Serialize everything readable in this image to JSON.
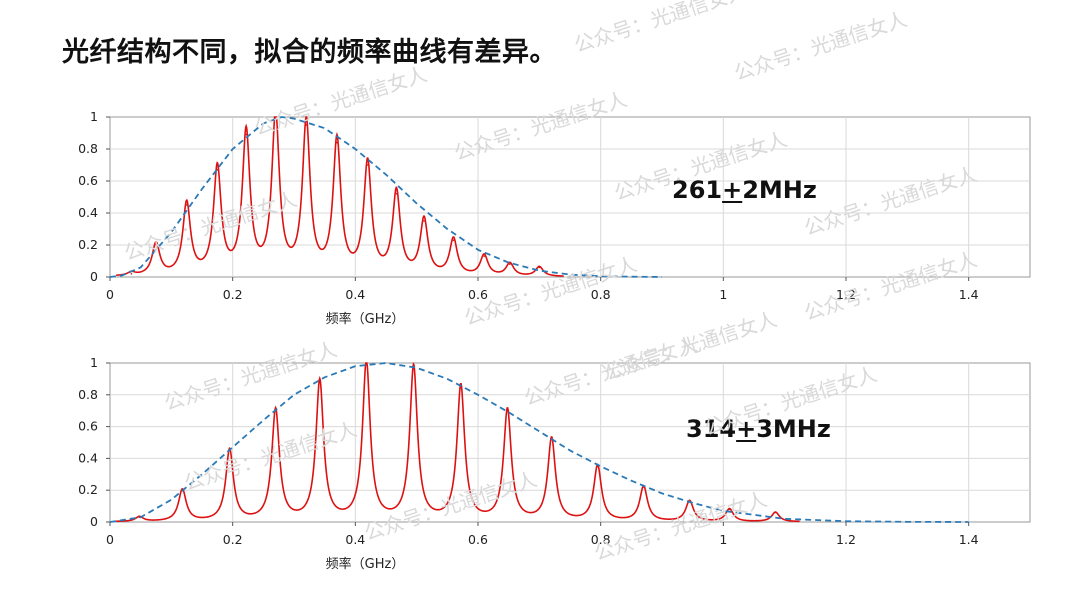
{
  "title": "光纤结构不同，拟合的频率曲线有差异。",
  "watermark_text": "公众号：光通信女人",
  "colors": {
    "peaks": "#dd1111",
    "envelope": "#2a7ab8",
    "grid": "#d9d9d9",
    "axis": "#555555"
  },
  "chart_data": [
    {
      "type": "line",
      "xlabel": "频率（GHz）",
      "ylabel": "",
      "xlim": [
        0,
        1.5
      ],
      "ylim": [
        0,
        1
      ],
      "xticks": [
        "0",
        "0.2",
        "0.4",
        "0.6",
        "0.8",
        "1",
        "1.2",
        "1.4"
      ],
      "yticks": [
        "0",
        "0.2",
        "0.4",
        "0.6",
        "0.8",
        "1"
      ],
      "grid": true,
      "annotation": {
        "value": "261",
        "pm": "+",
        "rest": "2MHz"
      },
      "series": [
        {
          "style": "solid-red",
          "peaks": [
            {
              "x": 0.035,
              "y": 0.02
            },
            {
              "x": 0.075,
              "y": 0.2
            },
            {
              "x": 0.125,
              "y": 0.45
            },
            {
              "x": 0.175,
              "y": 0.67
            },
            {
              "x": 0.222,
              "y": 0.89
            },
            {
              "x": 0.27,
              "y": 0.99
            },
            {
              "x": 0.32,
              "y": 0.95
            },
            {
              "x": 0.37,
              "y": 0.84
            },
            {
              "x": 0.42,
              "y": 0.7
            },
            {
              "x": 0.467,
              "y": 0.52
            },
            {
              "x": 0.512,
              "y": 0.35
            },
            {
              "x": 0.56,
              "y": 0.23
            },
            {
              "x": 0.61,
              "y": 0.13
            },
            {
              "x": 0.652,
              "y": 0.08
            },
            {
              "x": 0.7,
              "y": 0.06
            }
          ]
        },
        {
          "style": "dashed-blue",
          "x": [
            0.0,
            0.02,
            0.05,
            0.1,
            0.15,
            0.2,
            0.25,
            0.28,
            0.3,
            0.35,
            0.4,
            0.45,
            0.5,
            0.55,
            0.6,
            0.65,
            0.7,
            0.75,
            0.8,
            0.85,
            0.9
          ],
          "y": [
            0.0,
            0.01,
            0.06,
            0.28,
            0.55,
            0.8,
            0.96,
            1.0,
            0.99,
            0.93,
            0.8,
            0.64,
            0.46,
            0.3,
            0.17,
            0.09,
            0.04,
            0.015,
            0.005,
            0.002,
            0.0
          ]
        }
      ]
    },
    {
      "type": "line",
      "xlabel": "频率（GHz）",
      "ylabel": "",
      "xlim": [
        0,
        1.5
      ],
      "ylim": [
        0,
        1
      ],
      "xticks": [
        "0",
        "0.2",
        "0.4",
        "0.6",
        "0.8",
        "1",
        "1.2",
        "1.4"
      ],
      "yticks": [
        "0",
        "0.2",
        "0.4",
        "0.6",
        "0.8",
        "1"
      ],
      "grid": true,
      "annotation": {
        "value": "314",
        "pm": "+",
        "rest": "3MHz"
      },
      "series": [
        {
          "style": "solid-red",
          "peaks": [
            {
              "x": 0.048,
              "y": 0.03
            },
            {
              "x": 0.118,
              "y": 0.2
            },
            {
              "x": 0.195,
              "y": 0.45
            },
            {
              "x": 0.27,
              "y": 0.7
            },
            {
              "x": 0.342,
              "y": 0.88
            },
            {
              "x": 0.418,
              "y": 1.0
            },
            {
              "x": 0.495,
              "y": 0.97
            },
            {
              "x": 0.572,
              "y": 0.85
            },
            {
              "x": 0.648,
              "y": 0.7
            },
            {
              "x": 0.72,
              "y": 0.52
            },
            {
              "x": 0.795,
              "y": 0.35
            },
            {
              "x": 0.87,
              "y": 0.22
            },
            {
              "x": 0.945,
              "y": 0.13
            },
            {
              "x": 1.01,
              "y": 0.08
            },
            {
              "x": 1.085,
              "y": 0.06
            }
          ]
        },
        {
          "style": "dashed-blue",
          "x": [
            0.0,
            0.05,
            0.1,
            0.15,
            0.2,
            0.25,
            0.3,
            0.35,
            0.4,
            0.45,
            0.5,
            0.55,
            0.6,
            0.65,
            0.7,
            0.75,
            0.8,
            0.85,
            0.9,
            0.95,
            1.0,
            1.1,
            1.2,
            1.3,
            1.4
          ],
          "y": [
            0.0,
            0.03,
            0.14,
            0.3,
            0.47,
            0.64,
            0.8,
            0.91,
            0.98,
            1.0,
            0.97,
            0.9,
            0.8,
            0.69,
            0.57,
            0.45,
            0.35,
            0.26,
            0.18,
            0.12,
            0.07,
            0.02,
            0.005,
            0.001,
            0.0
          ]
        }
      ]
    }
  ]
}
